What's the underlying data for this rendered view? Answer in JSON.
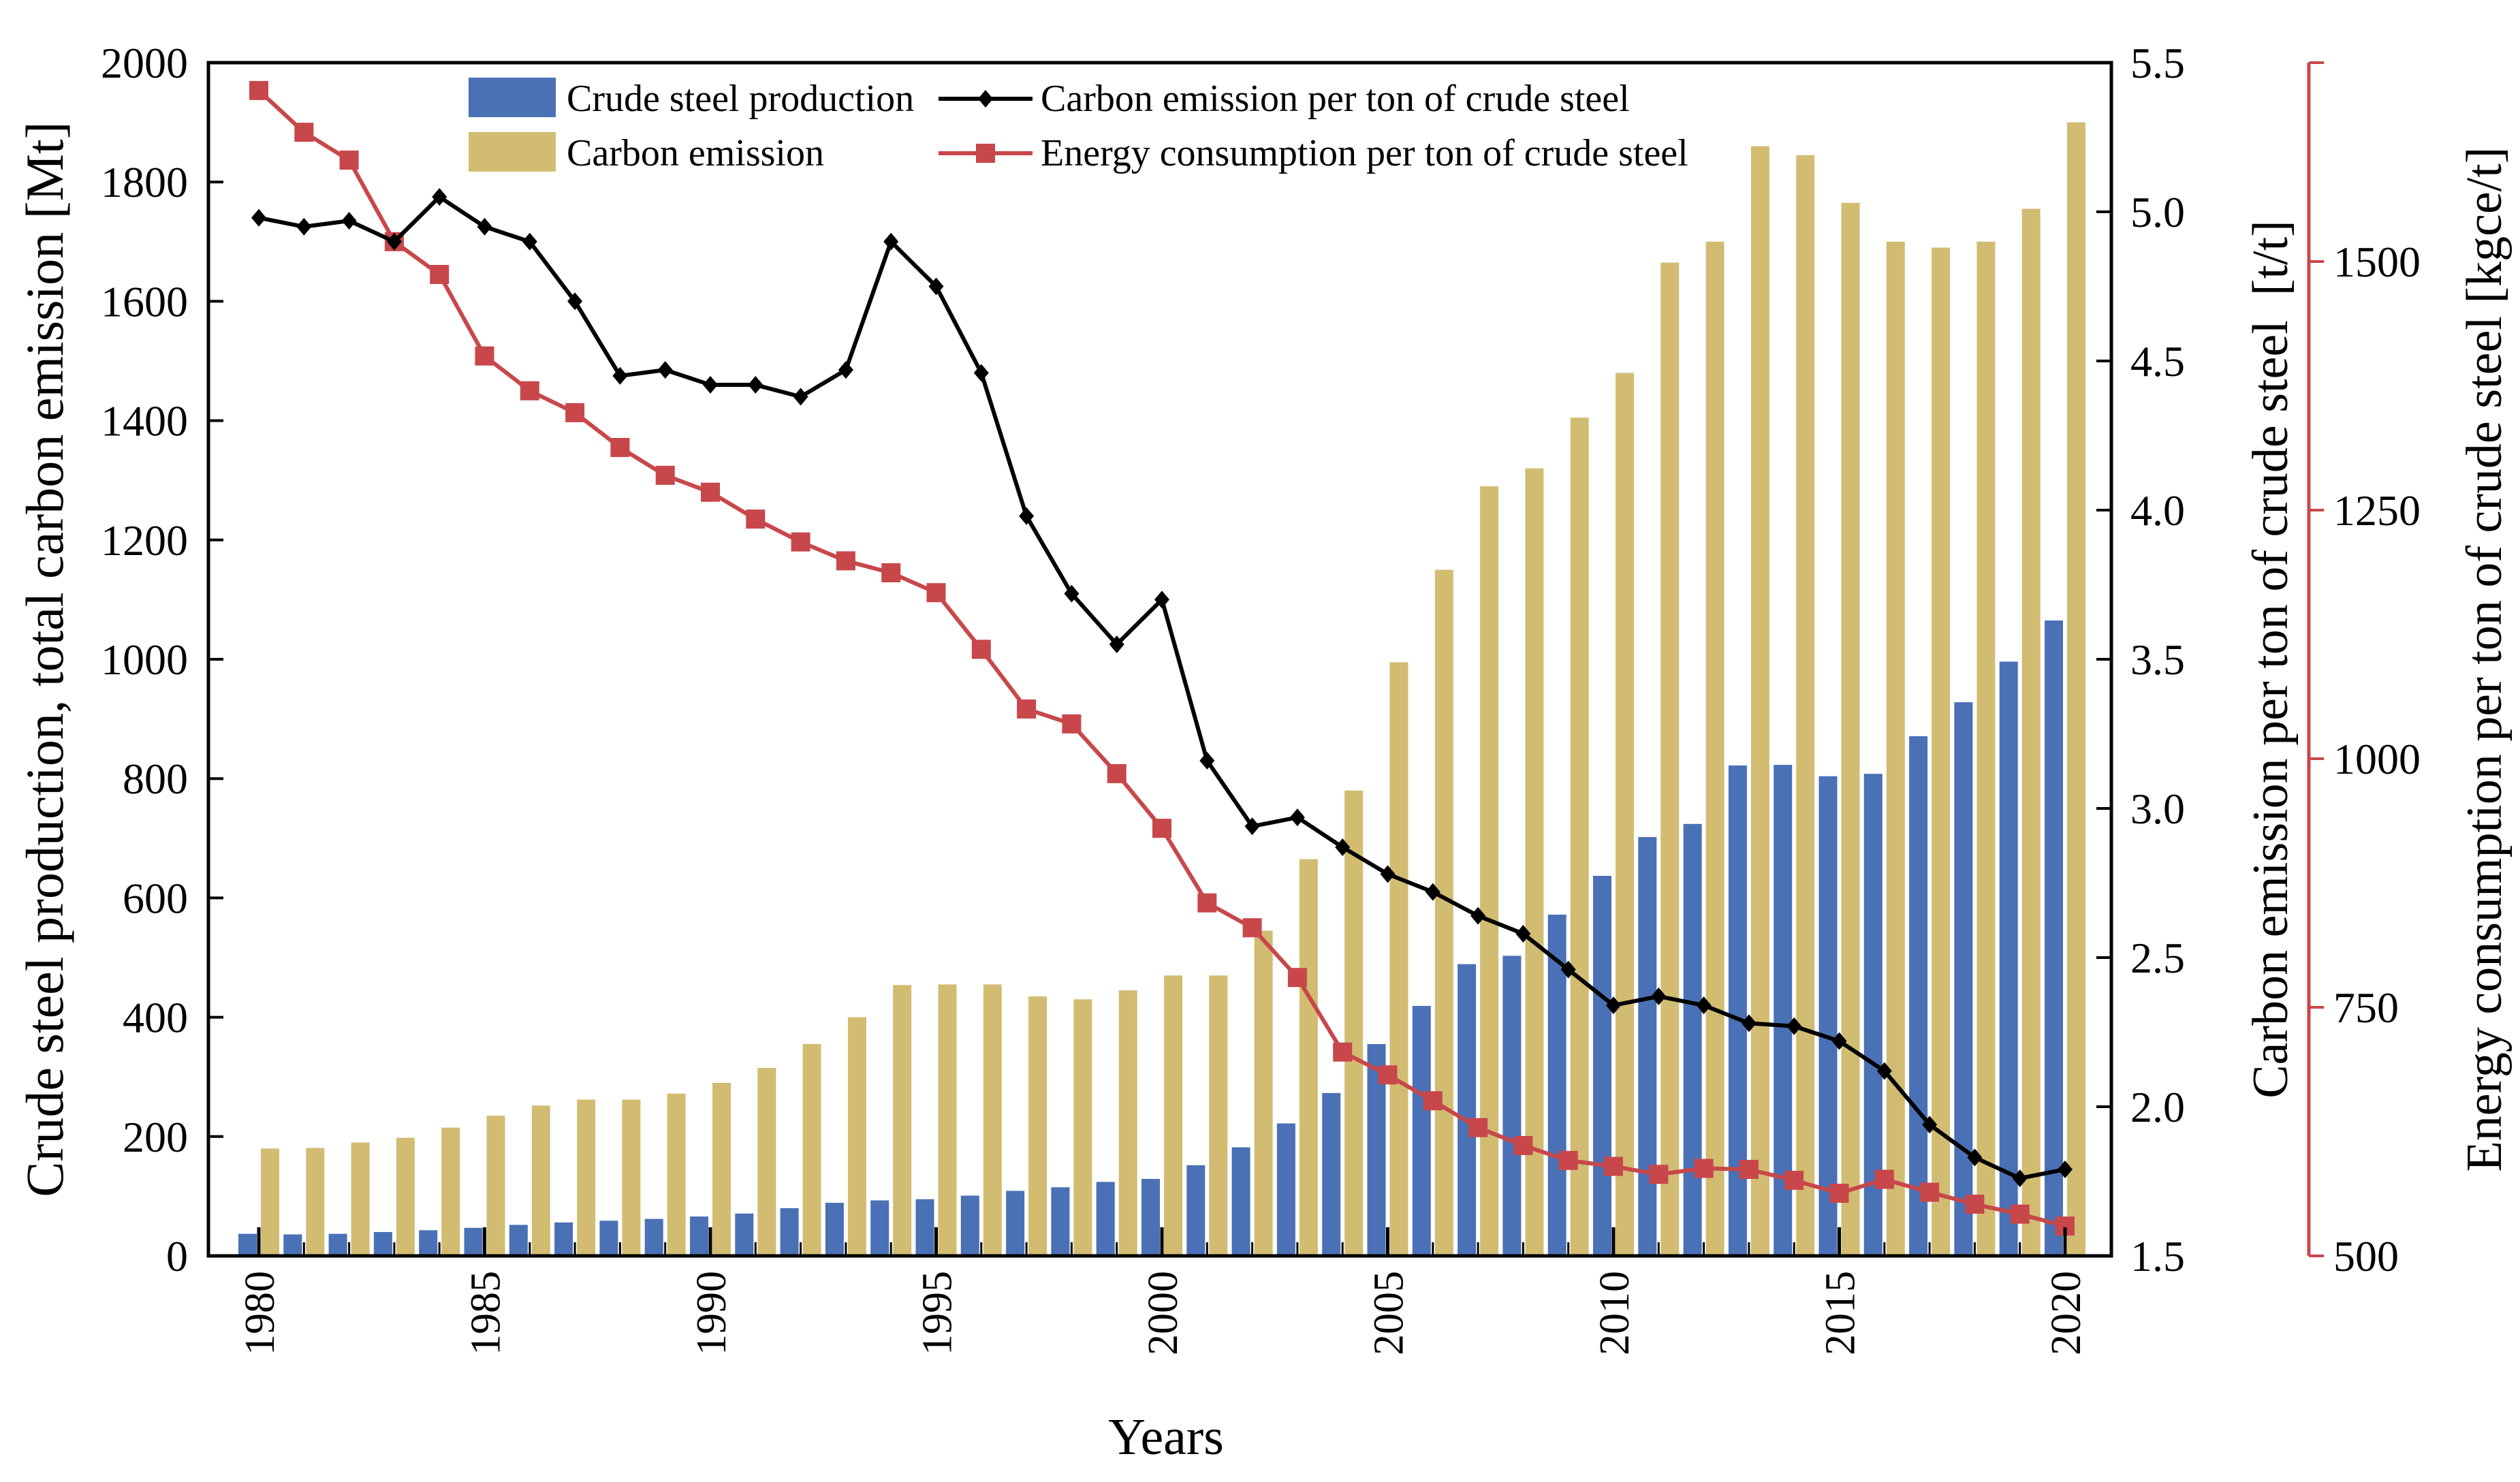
{
  "chart_data": {
    "type": "bar",
    "years": [
      1980,
      1981,
      1982,
      1983,
      1984,
      1985,
      1986,
      1987,
      1988,
      1989,
      1990,
      1991,
      1992,
      1993,
      1994,
      1995,
      1996,
      1997,
      1998,
      1999,
      2000,
      2001,
      2002,
      2003,
      2004,
      2005,
      2006,
      2007,
      2008,
      2009,
      2010,
      2011,
      2012,
      2013,
      2014,
      2015,
      2016,
      2017,
      2018,
      2019,
      2020
    ],
    "x_tick_labels": [
      "1980",
      "1985",
      "1990",
      "1995",
      "2000",
      "2005",
      "2010",
      "2015",
      "2020"
    ],
    "xlabel": "Years",
    "left_axis": {
      "label": "Crude steel production, total carbon emission [Mt]",
      "range": [
        0,
        2000
      ],
      "ticks": [
        "0",
        "200",
        "400",
        "600",
        "800",
        "1000",
        "1200",
        "1400",
        "1600",
        "1800",
        "2000"
      ]
    },
    "right_axis_1": {
      "label": "Carbon emission per ton of crude steel",
      "unit": "[t/t]",
      "range": [
        1.5,
        5.5
      ],
      "ticks": [
        "1.5",
        "2.0",
        "2.5",
        "3.0",
        "3.5",
        "4.0",
        "4.5",
        "5.0",
        "5.5"
      ]
    },
    "right_axis_2": {
      "label": "Energy consumption per ton of crude steel [kgce/t]",
      "range": [
        500,
        1700
      ],
      "ticks": [
        "500",
        "750",
        "1000",
        "1250",
        "1500"
      ],
      "color": "#c8474a"
    },
    "series": [
      {
        "name": "Crude steel production",
        "type": "bar",
        "axis": "left",
        "color": "#4a70b5",
        "values": [
          37,
          36,
          37,
          40,
          43,
          47,
          52,
          56,
          59,
          62,
          66,
          71,
          80,
          89,
          93,
          95,
          101,
          109,
          115,
          124,
          129,
          152,
          182,
          222,
          273,
          355,
          419,
          489,
          503,
          572,
          637,
          702,
          724,
          822,
          823,
          804,
          808,
          871,
          928,
          996,
          1065
        ]
      },
      {
        "name": "Carbon emission",
        "type": "bar",
        "axis": "left",
        "color": "#d1bc72",
        "values": [
          180,
          181,
          190,
          198,
          215,
          235,
          252,
          262,
          262,
          272,
          290,
          315,
          355,
          400,
          454,
          455,
          455,
          435,
          430,
          445,
          470,
          470,
          545,
          665,
          780,
          995,
          1150,
          1290,
          1320,
          1405,
          1480,
          1665,
          1700,
          1860,
          1845,
          1765,
          1700,
          1690,
          1700,
          1755,
          1900
        ]
      },
      {
        "name": "Carbon emission per ton of crude steel",
        "type": "line",
        "axis": "right_1",
        "color": "#000000",
        "marker": "diamond",
        "values": [
          4.98,
          4.95,
          4.97,
          4.9,
          5.05,
          4.95,
          4.9,
          4.7,
          4.45,
          4.47,
          4.42,
          4.42,
          4.38,
          4.47,
          4.9,
          4.75,
          4.46,
          3.98,
          3.72,
          3.55,
          3.7,
          3.16,
          2.94,
          2.97,
          2.87,
          2.78,
          2.72,
          2.64,
          2.58,
          2.46,
          2.34,
          2.37,
          2.34,
          2.28,
          2.27,
          2.22,
          2.12,
          1.94,
          1.83,
          1.76,
          1.79
        ]
      },
      {
        "name": "Energy consumption per ton of crude steel",
        "type": "line",
        "axis": "right_2",
        "color": "#c8474a",
        "marker": "square",
        "values": [
          1672,
          1630,
          1602,
          1520,
          1487,
          1405,
          1370,
          1348,
          1313,
          1285,
          1268,
          1241,
          1218,
          1199,
          1187,
          1167,
          1110,
          1050,
          1035,
          985,
          930,
          855,
          830,
          780,
          705,
          682,
          656,
          629,
          611,
          596,
          590,
          582,
          588,
          587,
          576,
          563,
          577,
          564,
          552,
          542,
          530
        ]
      }
    ],
    "legend": {
      "position": "top",
      "entries": [
        "Crude steel production",
        "Carbon emission",
        "Carbon emission per ton of crude steel",
        "Energy consumption per ton of crude steel"
      ]
    }
  }
}
